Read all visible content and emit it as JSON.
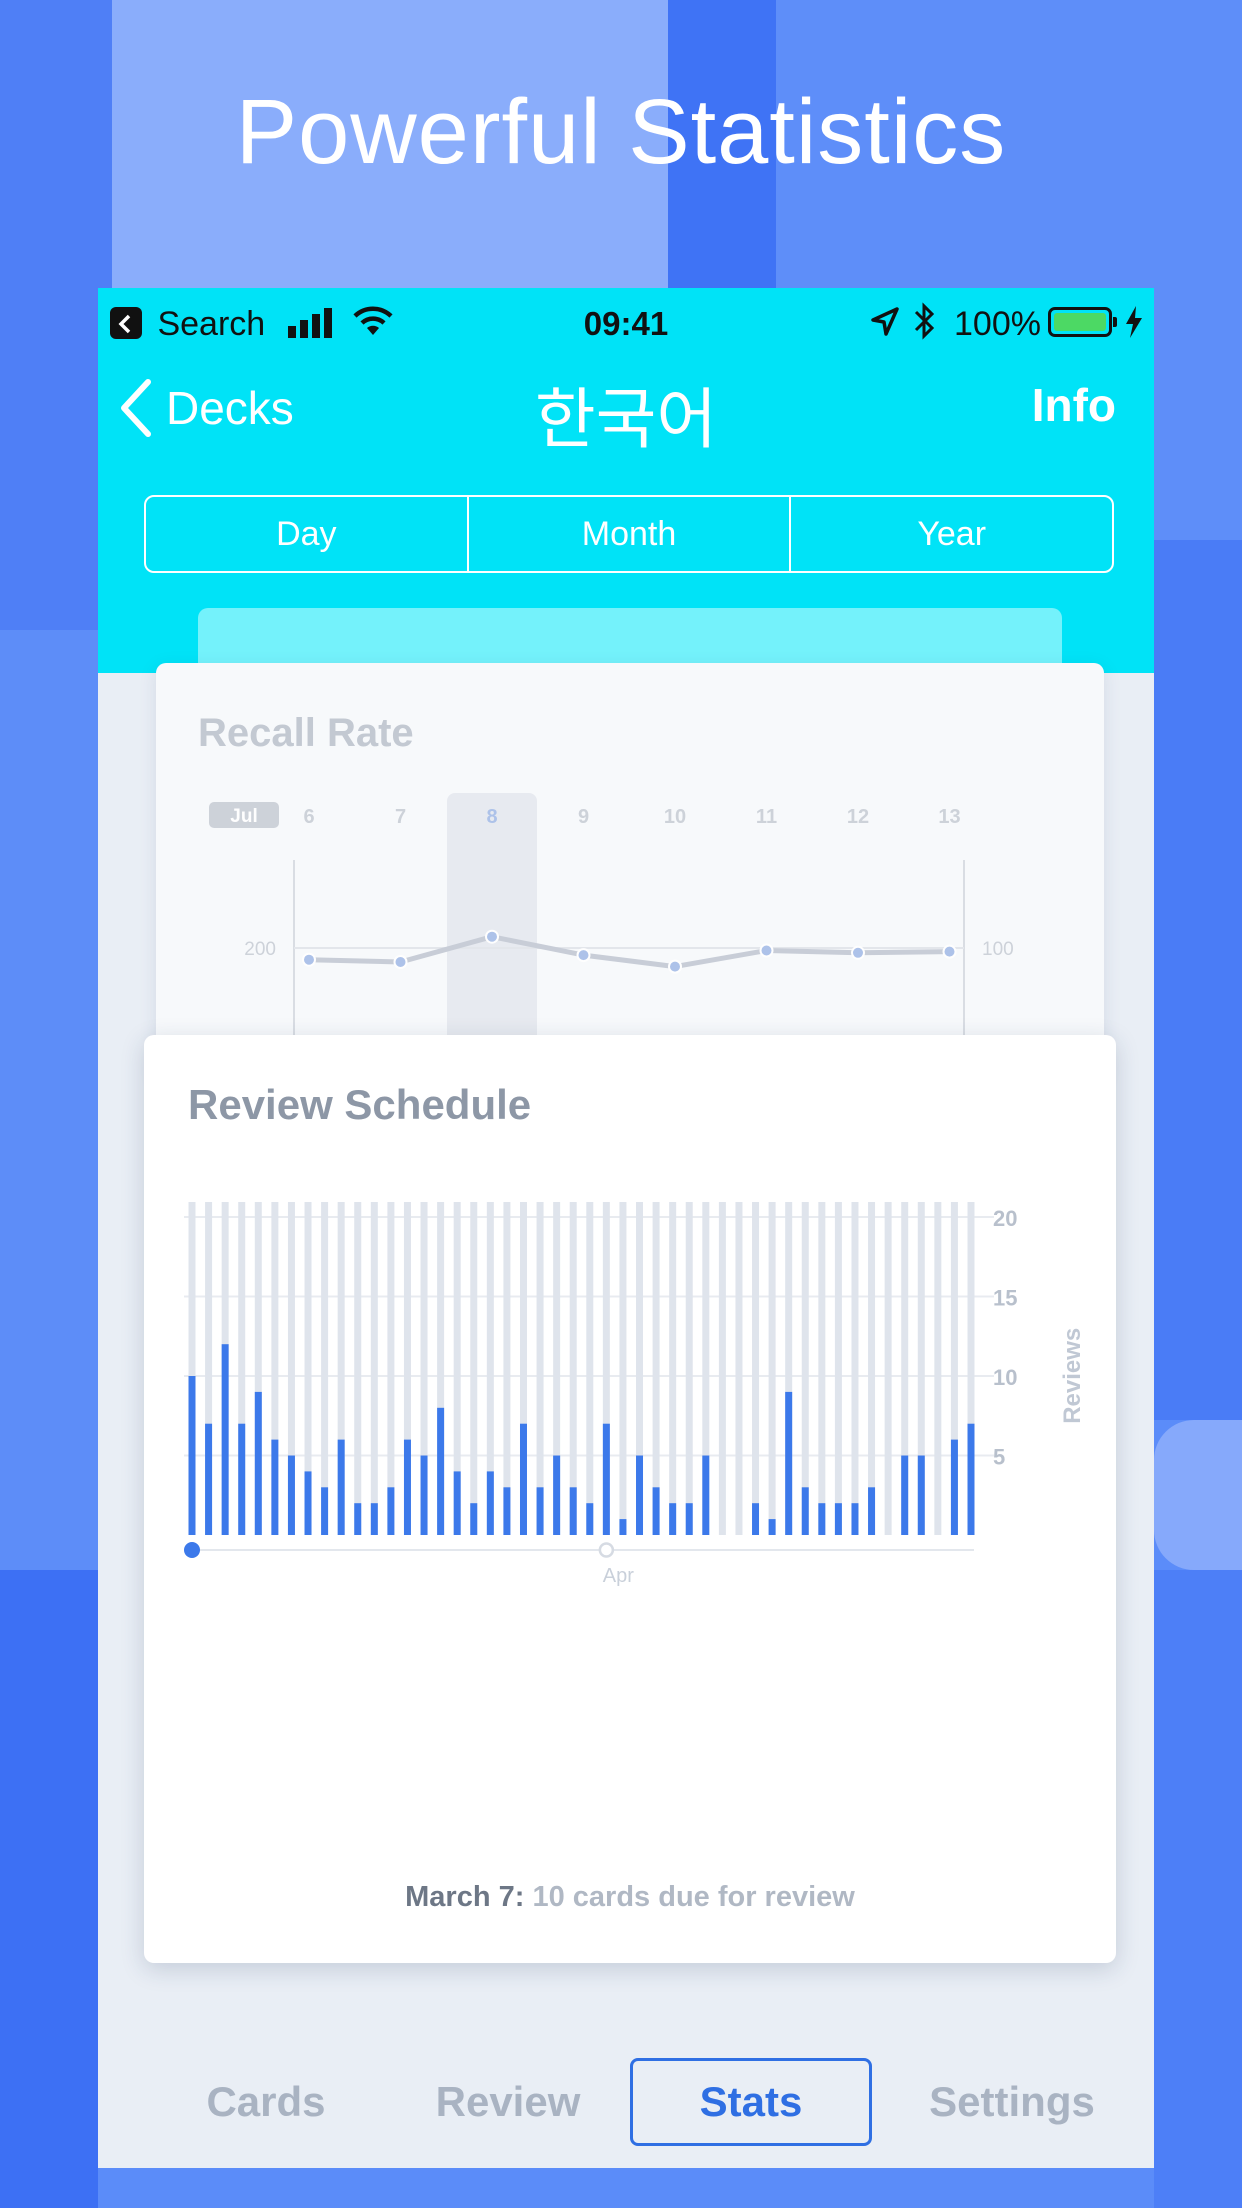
{
  "promo": {
    "title": "Powerful Statistics"
  },
  "colors": {
    "accent": "#00e3f7",
    "bar": "#3c79ea",
    "track": "#dfe4ec",
    "background": "#5b8cf9"
  },
  "status_bar": {
    "back_app": "Search",
    "time": "09:41",
    "battery": "100%",
    "icons": [
      "back-app-icon",
      "signal-icon",
      "wifi-icon",
      "location-icon",
      "bluetooth-icon",
      "battery-icon",
      "charging-icon"
    ]
  },
  "nav": {
    "back_label": "Decks",
    "title": "한국어",
    "info_label": "Info"
  },
  "segments": [
    {
      "label": "Day",
      "active": true
    },
    {
      "label": "Month",
      "active": false
    },
    {
      "label": "Year",
      "active": false
    }
  ],
  "recall_card": {
    "title": "Recall Rate"
  },
  "recall_chart": {
    "type": "line",
    "month_label": "Jul",
    "x": [
      "6",
      "7",
      "8",
      "9",
      "10",
      "11",
      "12",
      "13"
    ],
    "highlight": "8",
    "left_tick": "200",
    "right_tick": "100",
    "values": [
      42,
      40,
      62,
      46,
      36,
      50,
      48,
      49
    ]
  },
  "schedule_card": {
    "title": "Review Schedule",
    "caption_date": "March 7:",
    "caption_text": "10 cards due for review"
  },
  "chart_data": {
    "type": "bar",
    "title": "Review Schedule",
    "ylabel": "Reviews",
    "ylim": [
      0,
      20
    ],
    "yticks": [
      5,
      10,
      15,
      20
    ],
    "x_start": "March 7",
    "x_marker": "Apr",
    "x_marker_index": 25,
    "values": [
      10,
      7,
      12,
      7,
      9,
      6,
      5,
      4,
      3,
      6,
      2,
      2,
      3,
      6,
      5,
      8,
      4,
      2,
      4,
      3,
      7,
      3,
      5,
      3,
      2,
      7,
      1,
      5,
      3,
      2,
      2,
      5,
      0,
      0,
      2,
      1,
      9,
      3,
      2,
      2,
      2,
      3,
      0,
      5,
      5,
      0,
      6,
      7
    ]
  },
  "tabbar": {
    "tabs": [
      {
        "label": "Cards",
        "active": false
      },
      {
        "label": "Review",
        "active": false
      },
      {
        "label": "Stats",
        "active": true
      },
      {
        "label": "Settings",
        "active": false
      }
    ]
  }
}
